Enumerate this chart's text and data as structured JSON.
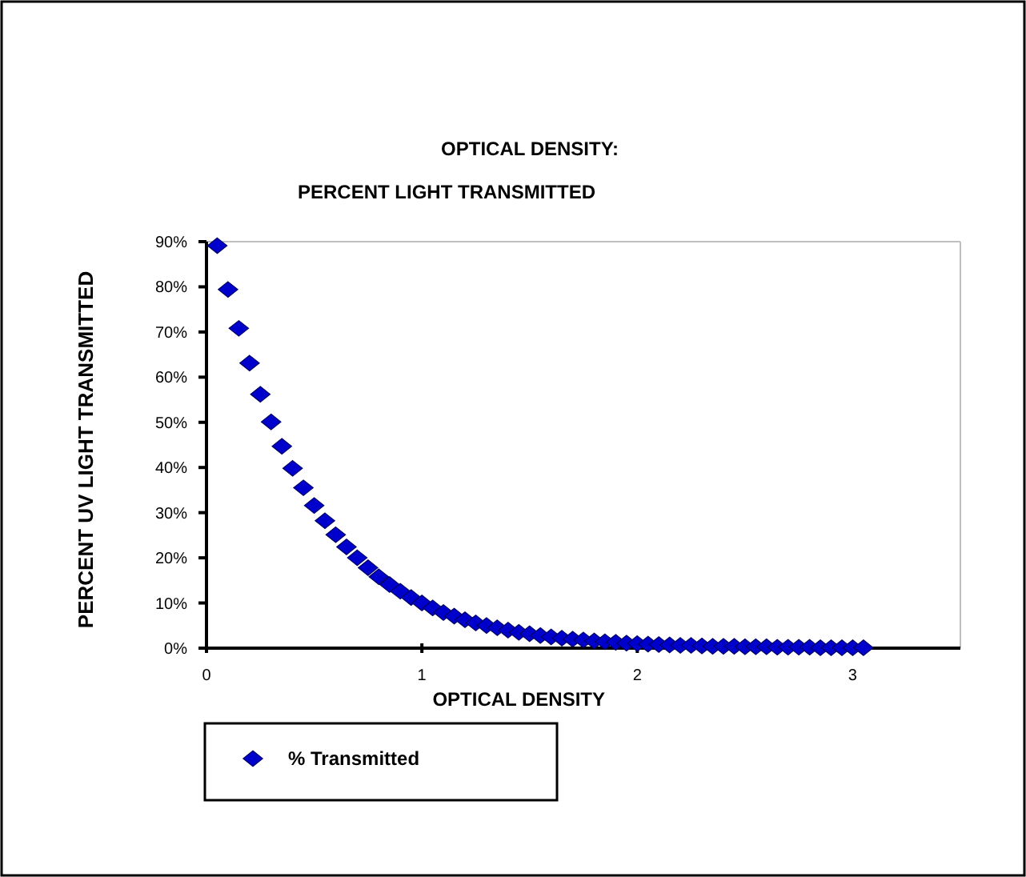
{
  "chart_data": {
    "type": "scatter",
    "title": "OPTICAL DENSITY:\nPERCENT LIGHT TRANSMITTED",
    "xlabel": "OPTICAL DENSITY",
    "ylabel": "PERCENT UV LIGHT TRANSMITTED",
    "x": [
      0.05,
      0.1,
      0.15,
      0.2,
      0.25,
      0.3,
      0.35,
      0.4,
      0.45,
      0.5,
      0.55,
      0.6,
      0.65,
      0.7,
      0.75,
      0.8,
      0.85,
      0.9,
      0.95,
      1.0,
      1.05,
      1.1,
      1.15,
      1.2,
      1.25,
      1.3,
      1.35,
      1.4,
      1.45,
      1.5,
      1.55,
      1.6,
      1.65,
      1.7,
      1.75,
      1.8,
      1.85,
      1.9,
      1.95,
      2.0,
      2.05,
      2.1,
      2.15,
      2.2,
      2.25,
      2.3,
      2.35,
      2.4,
      2.45,
      2.5,
      2.55,
      2.6,
      2.65,
      2.7,
      2.75,
      2.8,
      2.85,
      2.9,
      2.95,
      3.0,
      3.05
    ],
    "series": [
      {
        "name": "% Transmitted",
        "color": "#0000cc",
        "values": [
          89.1,
          79.4,
          70.8,
          63.1,
          56.2,
          50.1,
          44.7,
          39.8,
          35.5,
          31.6,
          28.2,
          25.1,
          22.4,
          20.0,
          17.8,
          15.8,
          14.1,
          12.6,
          11.2,
          10.0,
          8.9,
          7.9,
          7.1,
          6.3,
          5.6,
          5.0,
          4.5,
          4.0,
          3.5,
          3.2,
          2.8,
          2.5,
          2.2,
          2.0,
          1.8,
          1.6,
          1.4,
          1.3,
          1.1,
          1.0,
          0.9,
          0.8,
          0.7,
          0.6,
          0.6,
          0.5,
          0.4,
          0.4,
          0.4,
          0.3,
          0.3,
          0.3,
          0.2,
          0.2,
          0.2,
          0.2,
          0.1,
          0.1,
          0.1,
          0.1,
          0.1
        ]
      }
    ],
    "xlim": [
      0,
      3.5
    ],
    "xticks": [
      0,
      1,
      2,
      3
    ],
    "ylim": [
      0,
      90
    ],
    "yticks": [
      {
        "value": 0,
        "label": "0%"
      },
      {
        "value": 10,
        "label": "10%"
      },
      {
        "value": 20,
        "label": "20%"
      },
      {
        "value": 30,
        "label": "30%"
      },
      {
        "value": 40,
        "label": "40%"
      },
      {
        "value": 50,
        "label": "50%"
      },
      {
        "value": 60,
        "label": "60%"
      },
      {
        "value": 70,
        "label": "70%"
      },
      {
        "value": 80,
        "label": "80%"
      },
      {
        "value": 90,
        "label": "90%"
      }
    ],
    "marker": "diamond",
    "legend": "bottom left"
  }
}
